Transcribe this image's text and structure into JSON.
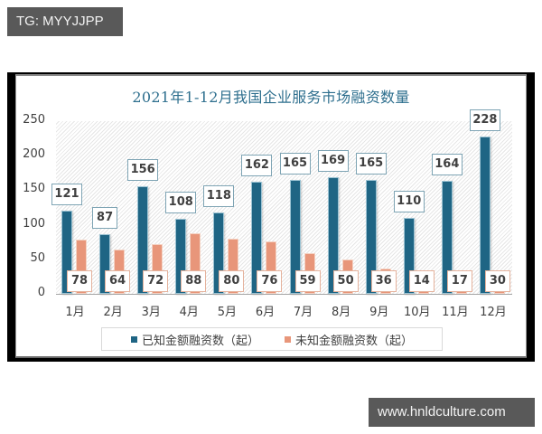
{
  "watermarks": {
    "top": "TG: MYYJJPP",
    "bottom": "www.hnldculture.com"
  },
  "colors": {
    "known": "#1f6584",
    "unknown": "#e8967a",
    "title": "#2e6f8e"
  },
  "chart_data": {
    "type": "bar",
    "title": "2021年1-12月我国企业服务市场融资数量",
    "xlabel": "",
    "ylabel": "",
    "ylim": [
      0,
      250
    ],
    "yticks": [
      0,
      50,
      100,
      150,
      200,
      250
    ],
    "grid": false,
    "legend_position": "bottom",
    "categories": [
      "1月",
      "2月",
      "3月",
      "4月",
      "5月",
      "6月",
      "7月",
      "8月",
      "9月",
      "10月",
      "11月",
      "12月"
    ],
    "series": [
      {
        "name": "已知金额融资数（起）",
        "values": [
          121,
          87,
          156,
          108,
          118,
          162,
          165,
          169,
          165,
          110,
          164,
          228
        ]
      },
      {
        "name": "未知金额融资数（起）",
        "values": [
          78,
          64,
          72,
          88,
          80,
          76,
          59,
          50,
          36,
          14,
          17,
          30
        ]
      }
    ]
  }
}
